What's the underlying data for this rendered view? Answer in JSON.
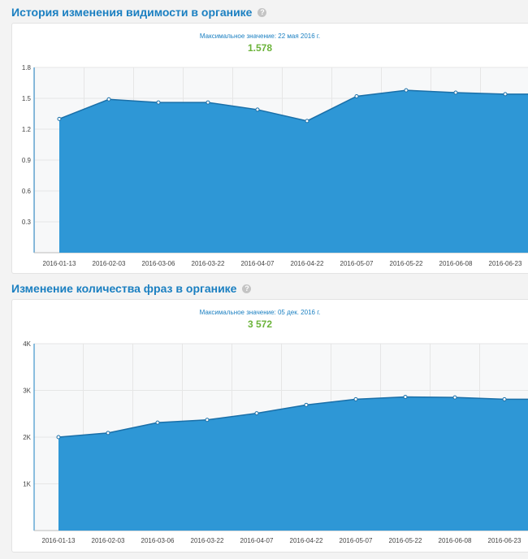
{
  "charts": [
    {
      "title": "История изменения видимости в органике",
      "help": "?",
      "max_label": "Максимальное значение: 22 мая 2016 г.",
      "max_value": "1.578"
    },
    {
      "title": "Изменение количества фраз в органике",
      "help": "?",
      "max_label": "Максимальное значение: 05 дек. 2016 г.",
      "max_value": "3 572"
    }
  ],
  "chart_data": [
    {
      "type": "area",
      "title": "История изменения видимости в органике",
      "x": [
        "2016-01-13",
        "2016-02-03",
        "2016-03-06",
        "2016-03-22",
        "2016-04-07",
        "2016-04-22",
        "2016-05-07",
        "2016-05-22",
        "2016-06-08",
        "2016-06-23"
      ],
      "values": [
        1.3,
        1.49,
        1.46,
        1.46,
        1.39,
        1.28,
        1.52,
        1.578,
        1.555,
        1.54
      ],
      "y_ticks": [
        0.3,
        0.6,
        0.9,
        1.2,
        1.5,
        1.8
      ],
      "y_tick_labels": [
        "0.3",
        "0.6",
        "0.9",
        "1.2",
        "1.5",
        "1.8"
      ],
      "ylim": [
        0,
        1.8
      ],
      "grid": true,
      "color": "#2e97d6"
    },
    {
      "type": "area",
      "title": "Изменение количества фраз в органике",
      "x": [
        "2016-01-13",
        "2016-02-03",
        "2016-03-06",
        "2016-03-22",
        "2016-04-07",
        "2016-04-22",
        "2016-05-07",
        "2016-05-22",
        "2016-06-08",
        "2016-06-23"
      ],
      "values": [
        2000,
        2090,
        2310,
        2370,
        2510,
        2690,
        2810,
        2860,
        2850,
        2810
      ],
      "y_ticks": [
        1000,
        2000,
        3000,
        4000
      ],
      "y_tick_labels": [
        "1K",
        "2K",
        "3K",
        "4K"
      ],
      "ylim": [
        0,
        4000
      ],
      "grid": true,
      "color": "#2e97d6"
    }
  ]
}
